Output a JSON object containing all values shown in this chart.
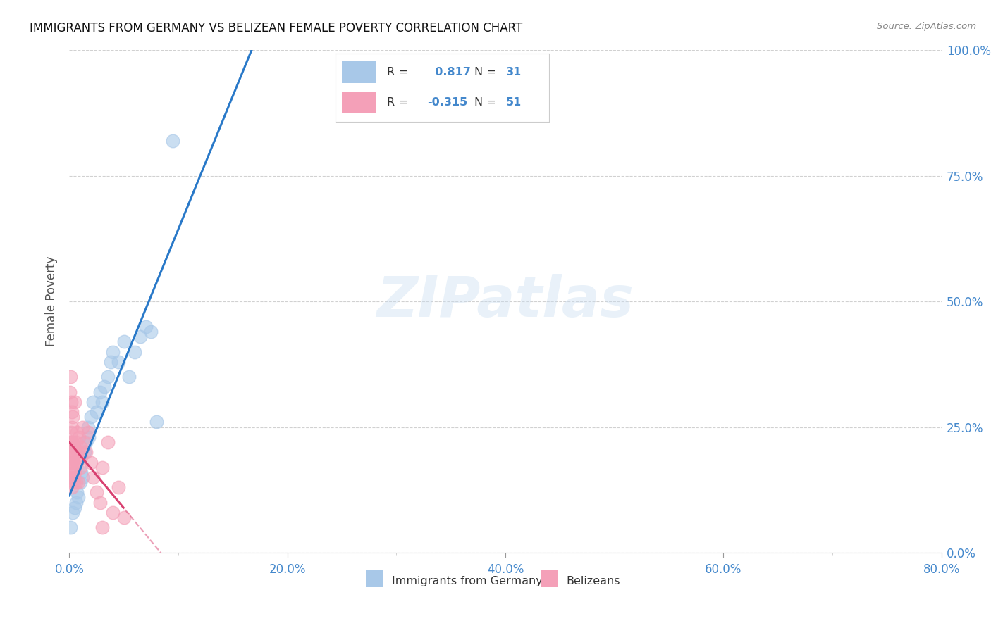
{
  "title": "IMMIGRANTS FROM GERMANY VS BELIZEAN FEMALE POVERTY CORRELATION CHART",
  "source": "Source: ZipAtlas.com",
  "xlabel_ticks": [
    "0.0%",
    "",
    "",
    "",
    "",
    "",
    "",
    "",
    "20.0%",
    "",
    "",
    "",
    "",
    "",
    "",
    "",
    "40.0%",
    "",
    "",
    "",
    "",
    "",
    "",
    "",
    "60.0%",
    "",
    "",
    "",
    "",
    "",
    "",
    "",
    "80.0%"
  ],
  "xlabel_vals": [
    0,
    2.5,
    5,
    7.5,
    10,
    12.5,
    15,
    17.5,
    20,
    22.5,
    25,
    27.5,
    30,
    32.5,
    35,
    37.5,
    40,
    42.5,
    45,
    47.5,
    50,
    52.5,
    55,
    57.5,
    60,
    62.5,
    65,
    67.5,
    70,
    72.5,
    75,
    77.5,
    80
  ],
  "xlabel_labeled": [
    0,
    20,
    40,
    60,
    80
  ],
  "ylabel": "Female Poverty",
  "ylabel_right_ticks": [
    "0.0%",
    "25.0%",
    "50.0%",
    "75.0%",
    "100.0%"
  ],
  "ylabel_right_vals": [
    0,
    25,
    50,
    75,
    100
  ],
  "ylim": [
    0,
    100
  ],
  "xlim": [
    0,
    80
  ],
  "R_germany": 0.817,
  "N_germany": 31,
  "R_belize": -0.315,
  "N_belize": 51,
  "blue_color": "#a8c8e8",
  "pink_color": "#f4a0b8",
  "blue_line_color": "#2878c8",
  "pink_line_color": "#d84070",
  "watermark_text": "ZIPatlas",
  "legend_label_germany": "Immigrants from Germany",
  "legend_label_belize": "Belizeans",
  "germany_x": [
    0.1,
    0.3,
    0.5,
    0.6,
    0.7,
    0.8,
    1.0,
    1.1,
    1.2,
    1.4,
    1.5,
    1.7,
    1.8,
    2.0,
    2.2,
    2.5,
    2.8,
    3.0,
    3.2,
    3.5,
    3.8,
    4.0,
    4.5,
    5.0,
    5.5,
    6.0,
    6.5,
    7.0,
    7.5,
    8.0,
    9.5
  ],
  "germany_y": [
    5,
    8,
    9,
    10,
    12,
    11,
    14,
    16,
    15,
    20,
    22,
    25,
    23,
    27,
    30,
    28,
    32,
    30,
    33,
    35,
    38,
    40,
    38,
    42,
    35,
    40,
    43,
    45,
    44,
    26,
    82
  ],
  "belize_x": [
    0.05,
    0.05,
    0.1,
    0.1,
    0.1,
    0.15,
    0.15,
    0.2,
    0.2,
    0.2,
    0.25,
    0.3,
    0.3,
    0.3,
    0.35,
    0.4,
    0.4,
    0.5,
    0.5,
    0.5,
    0.6,
    0.6,
    0.7,
    0.7,
    0.8,
    0.9,
    1.0,
    1.0,
    1.1,
    1.2,
    1.3,
    1.5,
    1.7,
    2.0,
    2.2,
    2.5,
    2.8,
    3.0,
    3.5,
    4.0,
    4.5,
    5.0,
    0.05,
    0.1,
    0.15,
    0.2,
    0.25,
    0.3,
    0.5,
    0.8,
    3.0
  ],
  "belize_y": [
    15,
    18,
    14,
    20,
    22,
    17,
    24,
    13,
    18,
    22,
    25,
    15,
    20,
    27,
    19,
    14,
    21,
    16,
    20,
    30,
    14,
    22,
    18,
    24,
    20,
    23,
    17,
    21,
    19,
    25,
    22,
    20,
    24,
    18,
    15,
    12,
    10,
    17,
    22,
    8,
    13,
    7,
    32,
    35,
    30,
    28,
    22,
    18,
    16,
    14,
    5
  ]
}
